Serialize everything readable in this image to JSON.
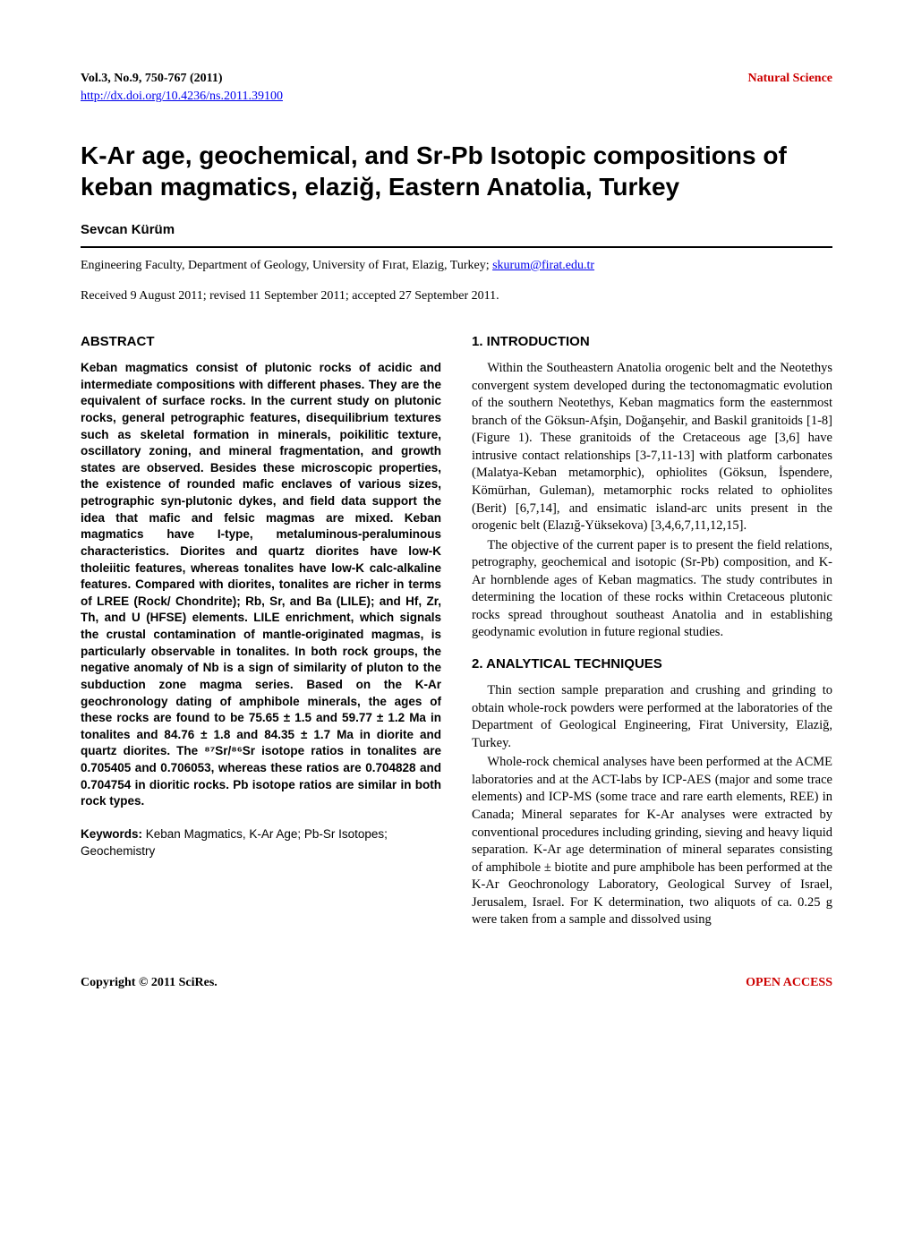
{
  "header": {
    "vol_info": "Vol.3, No.9, 750-767 (2011)",
    "journal_name": "Natural Science",
    "doi_url": "http://dx.doi.org/10.4236/ns.2011.39100"
  },
  "title": "K-Ar age, geochemical, and Sr-Pb Isotopic compositions of keban magmatics, elaziğ, Eastern Anatolia, Turkey",
  "author": "Sevcan Kürüm",
  "affiliation_text": "Engineering Faculty, Department of Geology, University of Fırat, Elazig, Turkey; ",
  "email": "skurum@firat.edu.tr",
  "received": "Received 9 August 2011; revised 11 September 2011; accepted 27 September 2011.",
  "abstract": {
    "heading": "ABSTRACT",
    "text": "Keban magmatics consist of plutonic rocks of acidic and intermediate compositions with different phases. They are the equivalent of surface rocks. In the current study on plutonic rocks, general petrographic features, disequilibrium textures such as skeletal formation in minerals, poikilitic texture, oscillatory zoning, and mineral fragmentation, and growth states are observed. Besides these microscopic properties, the existence of rounded mafic enclaves of various sizes, petrographic syn-plutonic dykes, and field data support the idea that mafic and felsic magmas are mixed. Keban magmatics have I-type, metaluminous-peraluminous characteristics. Diorites and quartz diorites have low-K tholeiitic features, whereas tonalites have low-K calc-alkaline features. Compared with diorites, tonalites are richer in terms of LREE (Rock/ Chondrite); Rb, Sr, and Ba (LILE); and Hf, Zr, Th, and U (HFSE) elements. LILE enrichment, which signals the crustal contamination of mantle-originated magmas, is particularly observable in tonalites. In both rock groups, the negative anomaly of Nb is a sign of similarity of pluton to the subduction zone magma series. Based on the K-Ar geochronology dating of amphibole minerals, the ages of these rocks are found to be 75.65 ± 1.5 and 59.77 ± 1.2 Ma in tonalites and 84.76 ± 1.8 and 84.35 ± 1.7 Ma in diorite and quartz diorites. The ⁸⁷Sr/⁸⁶Sr isotope ratios in tonalites are 0.705405 and 0.706053, whereas these ratios are 0.704828 and 0.704754 in dioritic rocks. Pb isotope ratios are similar in both rock types."
  },
  "keywords": {
    "label": "Keywords:",
    "text": " Keban Magmatics, K-Ar Age; Pb-Sr Isotopes; Geochemistry"
  },
  "sections": {
    "intro": {
      "heading": "1. INTRODUCTION",
      "p1": "Within the Southeastern Anatolia orogenic belt and the Neotethys convergent system developed during the tectonomagmatic evolution of the southern Neotethys, Keban magmatics form the easternmost branch of the Göksun-Afşin, Doğanşehir, and Baskil granitoids [1-8] (Figure 1). These granitoids of the Cretaceous age [3,6] have intrusive contact relationships [3-7,11-13] with platform carbonates (Malatya-Keban metamorphic), ophiolites (Göksun, İspendere, Kömürhan, Guleman), metamorphic rocks related to ophiolites (Berit) [6,7,14], and ensimatic island-arc units present in the orogenic belt (Elazığ-Yüksekova) [3,4,6,7,11,12,15].",
      "p2": "The objective of the current paper is to present the field relations, petrography, geochemical and isotopic (Sr-Pb) composition, and K-Ar hornblende ages of Keban magmatics. The study contributes in determining the location of these rocks within Cretaceous plutonic rocks spread throughout southeast Anatolia and in establishing geodynamic evolution in future regional studies."
    },
    "analytical": {
      "heading": "2. ANALYTICAL TECHNIQUES",
      "p1": "Thin section sample preparation and crushing and grinding to obtain whole-rock powders were performed at the laboratories of the Department of Geological Engineering, Firat University, Elaziğ, Turkey.",
      "p2": "Whole-rock chemical analyses have been performed at the ACME laboratories and at the ACT-labs by ICP-AES (major and some trace elements) and ICP-MS (some trace and rare earth elements, REE) in Canada; Mineral separates for K-Ar analyses were extracted by conventional procedures including grinding, sieving and heavy liquid separation. K-Ar age determination of mineral separates consisting of amphibole ± biotite and pure amphibole has been performed at the K-Ar Geochronology Laboratory, Geological Survey of Israel, Jerusalem, Israel. For K determination, two aliquots of ca. 0.25 g were taken from a sample and dissolved using"
    }
  },
  "footer": {
    "left": "Copyright © 2011 SciRes.",
    "right": "OPEN ACCESS"
  },
  "colors": {
    "link_blue": "#0000ee",
    "brand_red": "#cc0000",
    "text": "#000000",
    "background": "#ffffff"
  }
}
